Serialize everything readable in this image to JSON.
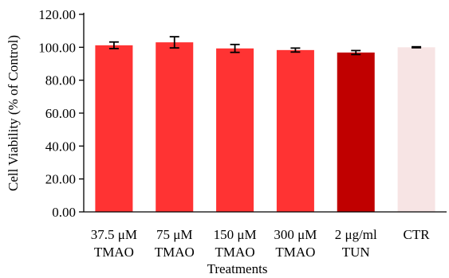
{
  "chart_data": {
    "type": "bar",
    "categories": [
      [
        "37.5 μM",
        "TMAO"
      ],
      [
        "75 μM",
        "TMAO"
      ],
      [
        "150 μM",
        "TMAO"
      ],
      [
        "300 μM",
        "TMAO"
      ],
      [
        "2 μg/ml",
        "TUN"
      ],
      [
        "CTR"
      ]
    ],
    "values": [
      101.2,
      103.0,
      99.3,
      98.3,
      96.8,
      100.0
    ],
    "errors": [
      2.0,
      3.4,
      2.4,
      1.2,
      1.2,
      0.3
    ],
    "colors": [
      "#ff3333",
      "#ff3333",
      "#ff3333",
      "#ff3333",
      "#c00000",
      "#f7e4e4"
    ],
    "xlabel": "Treatments",
    "ylabel": "Cell Viability (% of Control)",
    "ylim": [
      0,
      120
    ],
    "yticks": [
      "0.00",
      "20.00",
      "40.00",
      "60.00",
      "80.00",
      "100.00",
      "120.00"
    ],
    "grid": false,
    "legend": "none"
  }
}
